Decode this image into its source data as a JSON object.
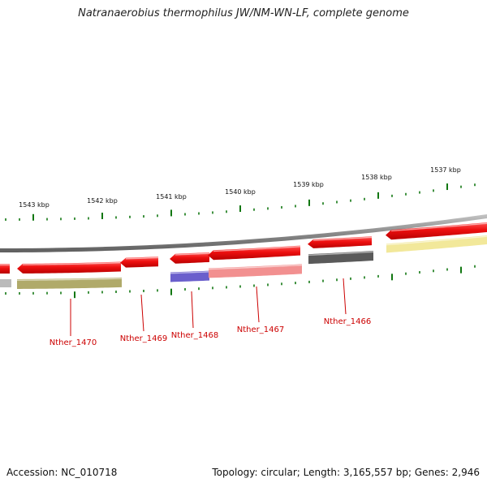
{
  "title": "Natranaerobius thermophilus JW/NM-WN-LF, complete genome",
  "footer": {
    "accession": "Accession: NC_010718",
    "summary": "Topology: circular; Length: 3,165,557 bp; Genes: 2,946"
  },
  "scale_labels": [
    "1543 kbp",
    "1542 kbp",
    "1541 kbp",
    "1540 kbp",
    "1539 kbp",
    "1538 kbp",
    "1537 kbp"
  ],
  "gene_labels": [
    "Nther_1470",
    "Nther_1469",
    "Nther_1468",
    "Nther_1467",
    "Nther_1466"
  ],
  "colors": {
    "backbone": "#8a8a8a",
    "cds_red": "#ee1111",
    "tick_green": "#117711",
    "label_red": "#cc0000",
    "olive": "#b0aa6a",
    "blue": "#6a5fcc",
    "pink": "#f29090",
    "dark_gray": "#5a5a5a",
    "light_yellow": "#f2e89a",
    "light_gray": "#bbbbbb"
  }
}
